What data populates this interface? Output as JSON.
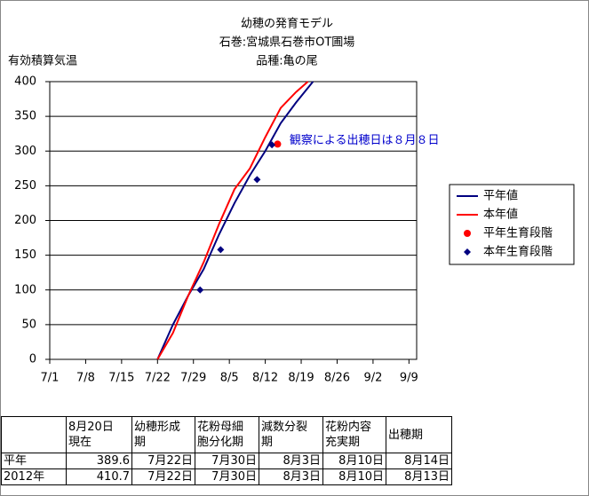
{
  "chart_data": {
    "type": "line",
    "title": [
      "幼穂の発育モデル",
      "石巻:宮城県石巻市OT圃場",
      "品種:亀の尾"
    ],
    "ylabel": "有効積算気温",
    "annotation": {
      "text": "観察による出穂日は８月８日",
      "x": 45,
      "y": 310,
      "color": "#0000cc"
    },
    "xlim": [
      0,
      71.5
    ],
    "xticks": [
      {
        "value": 0,
        "label": "7/1"
      },
      {
        "value": 7,
        "label": "7/8"
      },
      {
        "value": 14,
        "label": "7/15"
      },
      {
        "value": 21,
        "label": "7/22"
      },
      {
        "value": 28,
        "label": "7/29"
      },
      {
        "value": 35,
        "label": "8/5"
      },
      {
        "value": 42,
        "label": "8/12"
      },
      {
        "value": 49,
        "label": "8/19"
      },
      {
        "value": 56,
        "label": "8/26"
      },
      {
        "value": 63,
        "label": "9/2"
      },
      {
        "value": 70,
        "label": "9/9"
      }
    ],
    "ylim": [
      0,
      400
    ],
    "yticks": [
      0,
      50,
      100,
      150,
      200,
      250,
      300,
      350,
      400
    ],
    "grid": true,
    "legend": "right",
    "series": [
      {
        "name": "平年値",
        "color": "#000080",
        "style": "line",
        "x": [
          21,
          24,
          27,
          30,
          33,
          36,
          39,
          42,
          45,
          48,
          51.3
        ],
        "values": [
          0,
          50,
          92,
          130,
          180,
          225,
          265,
          300,
          340,
          370,
          400
        ]
      },
      {
        "name": "本年値",
        "color": "#ff0000",
        "style": "line",
        "x": [
          21,
          24,
          27,
          30,
          33,
          36,
          39,
          42,
          45,
          48,
          50.3
        ],
        "values": [
          0,
          38,
          92,
          140,
          195,
          245,
          275,
          320,
          362,
          385,
          400
        ]
      },
      {
        "name": "平年生育段階",
        "color": "#ff0000",
        "style": "circle",
        "x": [
          44.4
        ],
        "values": [
          310
        ]
      },
      {
        "name": "本年生育段階",
        "color": "#000080",
        "style": "diamond",
        "x": [
          29.3,
          33.3,
          40.4,
          43.3
        ],
        "values": [
          100,
          158,
          259,
          309
        ]
      }
    ]
  },
  "table": {
    "header": [
      "",
      "8月20日\n現在",
      "幼穂形成\n期",
      "花粉母細\n胞分化期",
      "減数分裂\n期",
      "花粉内容\n充実期",
      "出穂期"
    ],
    "rows": [
      [
        "平年",
        389.6,
        "7月22日",
        "7月30日",
        "8月3日",
        "8月10日",
        "8月14日"
      ],
      [
        "2012年",
        410.7,
        "7月22日",
        "7月30日",
        "8月3日",
        "8月10日",
        "8月13日"
      ]
    ]
  }
}
